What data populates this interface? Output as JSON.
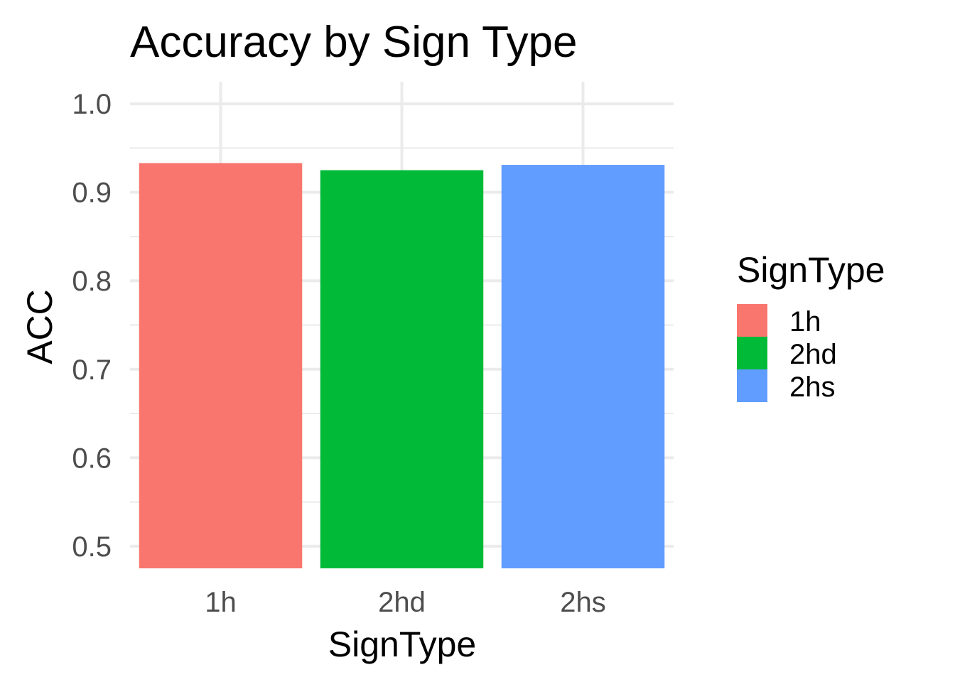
{
  "chart_data": {
    "type": "bar",
    "title": "Accuracy by Sign Type",
    "xlabel": "SignType",
    "ylabel": "ACC",
    "categories": [
      "1h",
      "2hd",
      "2hs"
    ],
    "values": [
      0.933,
      0.925,
      0.931
    ],
    "colors": [
      "#F8766D",
      "#00BA38",
      "#619CFF"
    ],
    "ylim": [
      0.475,
      1.025
    ],
    "yticks": [
      0.5,
      0.6,
      0.7,
      0.8,
      0.9,
      1.0
    ],
    "ytick_labels": [
      "0.5",
      "0.6",
      "0.7",
      "0.8",
      "0.9",
      "1.0"
    ],
    "grid": true,
    "grid_color": "#ebebeb",
    "legend": {
      "title": "SignType",
      "position": "right",
      "entries": [
        "1h",
        "2hd",
        "2hs"
      ]
    }
  }
}
